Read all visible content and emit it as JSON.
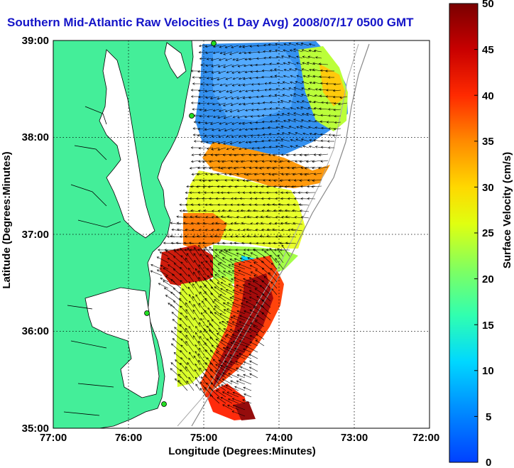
{
  "title": "Southern Mid-Atlantic Raw Velocities (1 Day Avg)",
  "timestamp": "2008/07/17 0500 GMT",
  "xaxis": {
    "label": "Longitude (Degrees:Minutes)",
    "ticks": [
      "77:00",
      "76:00",
      "75:00",
      "74:00",
      "73:00",
      "72:00"
    ]
  },
  "yaxis": {
    "label": "Latitude (Degrees:Minutes)",
    "ticks": [
      "39:00",
      "38:00",
      "37:00",
      "36:00",
      "35:00"
    ]
  },
  "colorbar": {
    "label": "Surface Velocity (cm/s)",
    "ticks": [
      "50",
      "45",
      "40",
      "35",
      "30",
      "25",
      "20",
      "15",
      "10",
      "5",
      "0"
    ],
    "range": [
      0,
      50
    ],
    "colors": [
      "#0040ff",
      "#00c8ff",
      "#00ffd0",
      "#40ff70",
      "#c8ff20",
      "#ffff00",
      "#ff9000",
      "#ff2000",
      "#c00000",
      "#800000"
    ]
  },
  "colors": {
    "title": "#1414c8",
    "land": "#44ee99",
    "ocean": "#ffffff",
    "vectors": "#000000",
    "station": "#22dd22"
  },
  "chart_data": {
    "type": "heatmap",
    "lon_range": [
      -77,
      -72
    ],
    "lat_range": [
      35,
      39
    ],
    "units": "cm/s"
  }
}
